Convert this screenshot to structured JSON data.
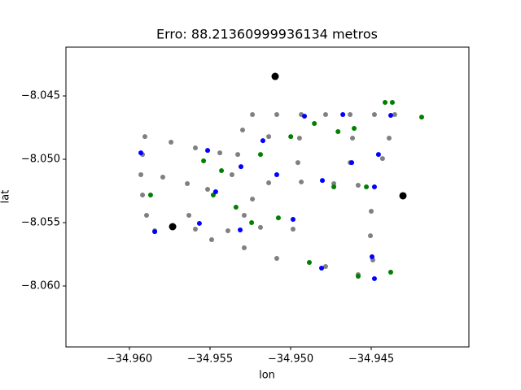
{
  "chart_data": {
    "type": "scatter",
    "title": "Erro: 88.21360999936134 metros",
    "x_label": "lon",
    "y_label": "lat",
    "xlim": [
      -34.96394,
      -34.93894
    ],
    "ylim": [
      -8.06481,
      -8.04115
    ],
    "xticks": [
      {
        "value": -34.96,
        "label": "−34.960"
      },
      {
        "value": -34.955,
        "label": "−34.955"
      },
      {
        "value": -34.95,
        "label": "−34.950"
      },
      {
        "value": -34.945,
        "label": "−34.945"
      }
    ],
    "yticks": [
      {
        "value": -8.045,
        "label": "−8.045"
      },
      {
        "value": -8.05,
        "label": "−8.050"
      },
      {
        "value": -8.055,
        "label": "−8.055"
      },
      {
        "value": -8.06,
        "label": "−8.060"
      }
    ],
    "series": [
      {
        "color": "#808080",
        "x": [
          -34.95237,
          -34.95086,
          -34.94934,
          -34.94783,
          -34.94631,
          -34.9448,
          -34.94354,
          -34.95904,
          -34.95919,
          -34.95929,
          -34.95919,
          -34.95894,
          -34.95843,
          -34.95742,
          -34.95591,
          -34.95439,
          -34.95793,
          -34.95641,
          -34.95515,
          -34.95591,
          -34.95389,
          -34.95187,
          -34.94985,
          -34.9549,
          -34.95288,
          -34.95086,
          -34.94783,
          -34.94581,
          -34.945,
          -34.94505,
          -34.9449,
          -34.94389,
          -34.9443,
          -34.95136,
          -34.94934,
          -34.94732,
          -34.94581,
          -34.95298,
          -34.95328,
          -34.95364,
          -34.94945,
          -34.94955,
          -34.94616,
          -34.94631,
          -34.95237,
          -34.95288,
          -34.95136,
          -34.95631
        ],
        "y": [
          -8.04647,
          -8.04647,
          -8.04647,
          -8.04647,
          -8.04647,
          -8.04647,
          -8.04647,
          -8.04821,
          -8.04962,
          -8.05122,
          -8.05282,
          -8.05442,
          -8.05564,
          -8.04865,
          -8.0491,
          -8.04949,
          -8.05141,
          -8.05192,
          -8.05237,
          -8.05551,
          -8.05564,
          -8.05538,
          -8.05551,
          -8.05635,
          -8.05699,
          -8.05782,
          -8.05846,
          -8.0591,
          -8.0541,
          -8.05603,
          -8.05795,
          -8.04833,
          -8.04994,
          -8.05186,
          -8.05179,
          -8.05192,
          -8.05205,
          -8.04769,
          -8.04962,
          -8.05122,
          -8.04833,
          -8.05026,
          -8.04833,
          -8.05026,
          -8.05314,
          -8.05442,
          -8.04821,
          -8.05442
        ]
      },
      {
        "color": "#008000",
        "x": [
          -34.9554,
          -34.95429,
          -34.94999,
          -34.94853,
          -34.94706,
          -34.94606,
          -34.94414,
          -34.94369,
          -34.94187,
          -34.94379,
          -34.94884,
          -34.95076,
          -34.95242,
          -34.95869,
          -34.9548,
          -34.94732,
          -34.94581,
          -34.95339,
          -34.95187,
          -34.9453
        ],
        "y": [
          -8.05013,
          -8.0509,
          -8.04821,
          -8.04718,
          -8.04782,
          -8.04756,
          -8.04551,
          -8.04551,
          -8.04667,
          -8.05891,
          -8.05814,
          -8.05462,
          -8.055,
          -8.05282,
          -8.05282,
          -8.05218,
          -8.05923,
          -8.05378,
          -8.04962,
          -8.05218
        ]
      },
      {
        "color": "#0000ff",
        "x": [
          -34.95929,
          -34.95515,
          -34.95172,
          -34.95086,
          -34.95308,
          -34.94914,
          -34.94676,
          -34.94803,
          -34.9448,
          -34.94455,
          -34.94495,
          -34.9448,
          -34.94808,
          -34.94985,
          -34.95465,
          -34.95566,
          -34.95313,
          -34.95843,
          -34.94621,
          -34.94379
        ],
        "y": [
          -8.04949,
          -8.0493,
          -8.04853,
          -8.05122,
          -8.05058,
          -8.0466,
          -8.04647,
          -8.05167,
          -8.05218,
          -8.04962,
          -8.05769,
          -8.05942,
          -8.05859,
          -8.05474,
          -8.05256,
          -8.05506,
          -8.05558,
          -8.05571,
          -8.05026,
          -8.04654
        ]
      },
      {
        "color": "#000000",
        "size": "large",
        "x": [
          -34.95096,
          -34.95732,
          -34.94303
        ],
        "y": [
          -8.04346,
          -8.05532,
          -8.05288
        ]
      }
    ]
  }
}
